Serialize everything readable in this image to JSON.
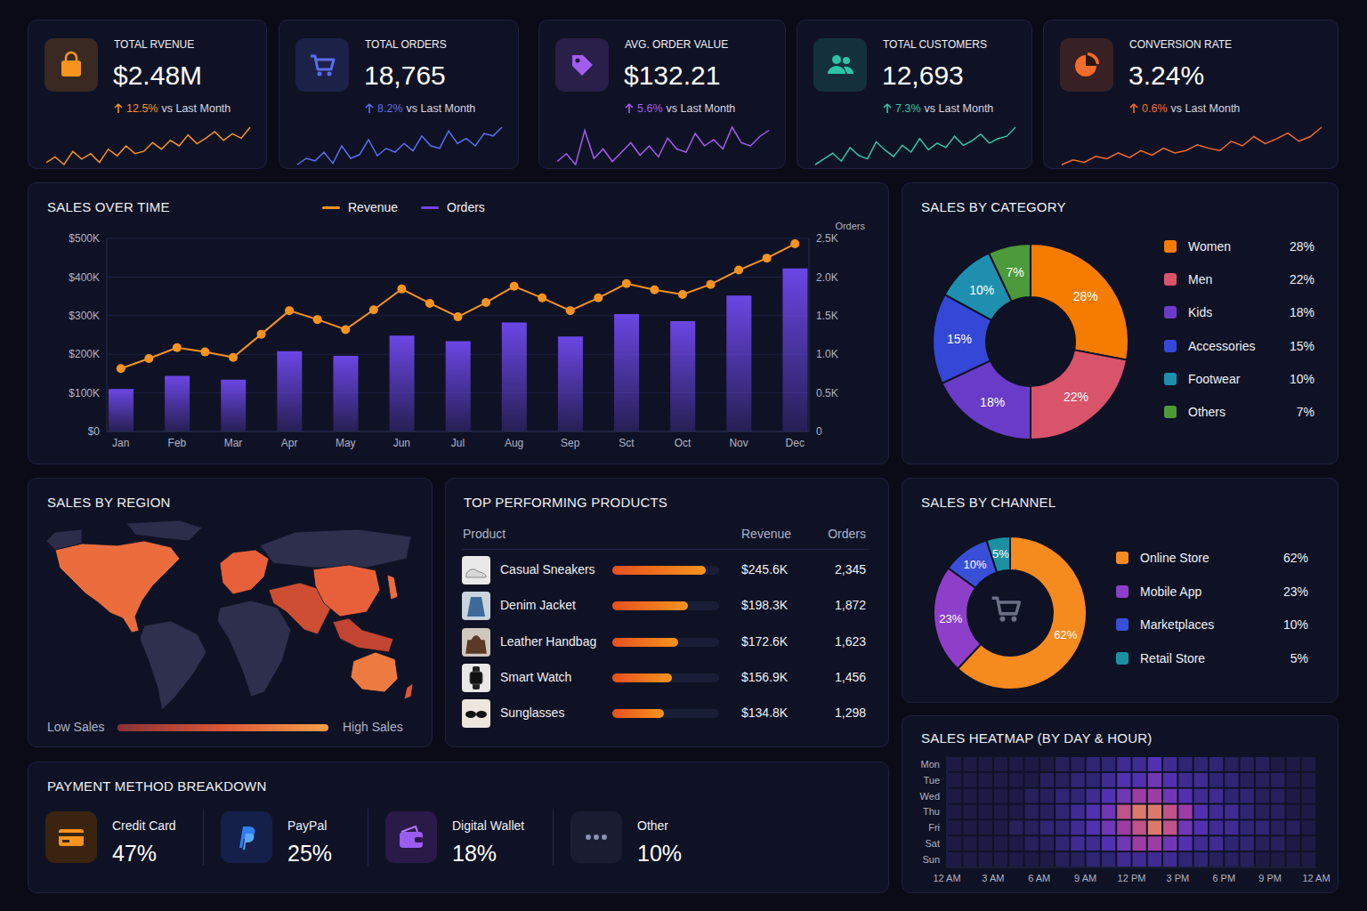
{
  "kpis": [
    {
      "title": "TOTAL RVENUE",
      "value": "$2.48M",
      "change": "12.5%",
      "compare": "vs Last Month",
      "color": "#f7931e",
      "sparkline": [
        30,
        35,
        28,
        40,
        33,
        38,
        30,
        42,
        36,
        45,
        38,
        40,
        48,
        42,
        50,
        45,
        55,
        47,
        52,
        58,
        50,
        56,
        52,
        62
      ]
    },
    {
      "title": "TOTAL ORDERS",
      "value": "18,765",
      "change": "8.2%",
      "compare": "vs Last Month",
      "color": "#5b6cf0",
      "sparkline": [
        25,
        30,
        28,
        35,
        26,
        40,
        30,
        33,
        45,
        32,
        38,
        35,
        42,
        36,
        48,
        40,
        38,
        52,
        42,
        46,
        40,
        50,
        48,
        55
      ]
    },
    {
      "title": "AVG. ORDER VALUE",
      "value": "$132.21",
      "change": "5.6%",
      "compare": "vs Last Month",
      "color": "#a35cf0",
      "sparkline": [
        30,
        35,
        28,
        50,
        32,
        38,
        30,
        36,
        42,
        34,
        40,
        33,
        45,
        38,
        36,
        48,
        40,
        44,
        38,
        52,
        42,
        40,
        46,
        50
      ]
    },
    {
      "title": "TOTAL CUSTOMERS",
      "value": "12,693",
      "change": "7.3%",
      "compare": "vs Last Month",
      "color": "#2ec4a6",
      "sparkline": [
        25,
        30,
        35,
        28,
        40,
        33,
        30,
        45,
        38,
        32,
        42,
        36,
        48,
        38,
        44,
        40,
        50,
        42,
        46,
        52,
        44,
        48,
        50,
        58
      ]
    },
    {
      "title": "CONVERSION RATE",
      "value": "3.24%",
      "change": "0.6%",
      "compare": "vs Last Month",
      "color": "#f36b2a",
      "sparkline": [
        28,
        32,
        30,
        35,
        33,
        38,
        34,
        40,
        36,
        42,
        38,
        40,
        45,
        42,
        40,
        48,
        44,
        52,
        46,
        50,
        55,
        48,
        52,
        60
      ]
    }
  ],
  "chart_data": [
    {
      "type": "combo",
      "title": "SALES OVER TIME",
      "categories": [
        "Jan",
        null,
        "Feb",
        null,
        "Mar",
        null,
        "Apr",
        null,
        "May",
        null,
        "Jun",
        null,
        "Jul",
        null,
        "Aug",
        null,
        "Sep",
        null,
        "Sct",
        null,
        "Oct",
        null,
        "Nov",
        null,
        "Dec"
      ],
      "series": [
        {
          "name": "Revenue",
          "type": "line",
          "color": "#f7931e",
          "marker": "circle",
          "values": [
            163000,
            189000,
            217000,
            206000,
            192000,
            252000,
            313000,
            290000,
            264000,
            315000,
            369000,
            332000,
            297000,
            334000,
            376000,
            346000,
            313000,
            346000,
            383000,
            367000,
            355000,
            381000,
            418000,
            449000,
            486000
          ]
        },
        {
          "name": "Orders",
          "type": "bar",
          "axis": "y2",
          "color": "#6b46e5",
          "values": [
            550,
            null,
            720,
            null,
            670,
            null,
            1040,
            null,
            980,
            null,
            1240,
            null,
            1170,
            null,
            1410,
            null,
            1230,
            null,
            1520,
            null,
            1430,
            null,
            1760,
            null,
            2110
          ]
        }
      ],
      "ylim": [
        0,
        500000
      ],
      "yticks": [
        {
          "value": 0,
          "label": "$0"
        },
        {
          "value": 100000,
          "label": "$100K"
        },
        {
          "value": 200000,
          "label": "$200K"
        },
        {
          "value": 300000,
          "label": "$300K"
        },
        {
          "value": 400000,
          "label": "$400K"
        },
        {
          "value": 500000,
          "label": "$500K"
        }
      ],
      "y2lim": [
        0,
        2500
      ],
      "y2ticks": [
        0,
        {
          "value": 500,
          "label": "0.5K"
        },
        {
          "value": 1000,
          "label": "1.0K"
        },
        {
          "value": 1500,
          "label": "1.5K"
        },
        {
          "value": 2000,
          "label": "2.0K"
        },
        {
          "value": 2500,
          "label": "2.5K"
        }
      ],
      "y2_label": "Orders",
      "grid": true,
      "legend": "top"
    },
    {
      "type": "donut",
      "title": "SALES BY CATEGORY",
      "categories": [
        "Women",
        "Men",
        "Kids",
        "Accessories",
        "Footwear",
        "Others"
      ],
      "values": [
        28,
        22,
        18,
        15,
        10,
        7
      ],
      "value_labels": [
        "28%",
        "22%",
        "18%",
        "15%",
        "10%",
        "7%"
      ],
      "colors": [
        "#f57c00",
        "#d9536b",
        "#6a3bc8",
        "#3547d6",
        "#1f8fb0",
        "#4c9a3a"
      ],
      "data_labels": true,
      "legend": "right"
    },
    {
      "type": "map",
      "title": "SALES BY REGION",
      "values": [
        80,
        5,
        5,
        15,
        75,
        10,
        12,
        65,
        75,
        80,
        60,
        85,
        70
      ],
      "color_range": [
        0,
        100
      ],
      "low_label": "Low Sales",
      "high_label": "High Sales"
    },
    {
      "type": "donut",
      "title": "SALES BY CHANNEL",
      "categories": [
        "Online Store",
        "Mobile App",
        "Marketplaces",
        "Retail Store"
      ],
      "values": [
        62,
        23,
        10,
        5
      ],
      "value_labels": [
        "62%",
        "23%",
        "10%",
        "5%"
      ],
      "colors": [
        "#f58a1f",
        "#8e3fc9",
        "#3a4fd8",
        "#1c8fa0"
      ],
      "data_labels": true,
      "legend": "right"
    },
    {
      "type": "heatmap",
      "title": "SALES HEATMAP (BY DAY & HOUR)",
      "categories": [
        "Mon",
        "Tue",
        "Wed",
        "Thu",
        "Fri",
        "Sat",
        "Sun"
      ],
      "xlim": [
        0,
        24
      ],
      "xticks": [
        {
          "value": 0,
          "label": "12 AM"
        },
        {
          "value": 3,
          "label": "3 AM"
        },
        {
          "value": 6,
          "label": "6 AM"
        },
        {
          "value": 9,
          "label": "9 AM"
        },
        {
          "value": 12,
          "label": "12 PM"
        },
        {
          "value": 15,
          "label": "3 PM"
        },
        {
          "value": 18,
          "label": "6 PM"
        },
        {
          "value": 21,
          "label": "9 PM"
        },
        {
          "value": 24,
          "label": "12 AM"
        }
      ],
      "cells": [
        [
          1,
          1,
          1,
          1,
          1,
          1,
          1,
          2,
          2,
          3,
          3,
          4,
          4,
          5,
          4,
          3,
          3,
          3,
          2,
          2,
          2,
          1,
          1,
          1
        ],
        [
          1,
          1,
          1,
          1,
          1,
          1,
          2,
          2,
          3,
          3,
          4,
          5,
          5,
          6,
          5,
          4,
          4,
          3,
          3,
          2,
          2,
          2,
          1,
          1
        ],
        [
          1,
          1,
          1,
          1,
          1,
          2,
          2,
          3,
          3,
          4,
          5,
          6,
          7,
          7,
          6,
          5,
          4,
          4,
          3,
          3,
          2,
          2,
          1,
          1
        ],
        [
          1,
          1,
          1,
          1,
          1,
          2,
          2,
          3,
          4,
          5,
          6,
          8,
          9,
          9,
          8,
          7,
          5,
          4,
          4,
          3,
          2,
          2,
          1,
          1
        ],
        [
          1,
          1,
          1,
          1,
          2,
          2,
          3,
          3,
          4,
          5,
          6,
          7,
          8,
          9,
          8,
          6,
          5,
          4,
          4,
          3,
          3,
          2,
          2,
          1
        ],
        [
          1,
          1,
          1,
          1,
          1,
          2,
          2,
          3,
          4,
          4,
          5,
          6,
          7,
          7,
          6,
          5,
          4,
          4,
          3,
          3,
          2,
          2,
          1,
          1
        ],
        [
          1,
          1,
          1,
          1,
          1,
          1,
          1,
          2,
          2,
          3,
          3,
          4,
          4,
          4,
          4,
          3,
          3,
          2,
          2,
          2,
          1,
          1,
          1,
          1
        ]
      ],
      "color_range": [
        0,
        10
      ]
    }
  ],
  "top_products": {
    "title": "TOP PERFORMING PRODUCTS",
    "columns": [
      "Product",
      "Revenue",
      "Orders"
    ],
    "bar_range": [
      0,
      280000
    ],
    "rows": [
      {
        "product": "Casual Sneakers",
        "revenue": {
          "value": 245600,
          "label": "$245.6K"
        },
        "orders": "2,345"
      },
      {
        "product": "Denim Jacket",
        "revenue": {
          "value": 198300,
          "label": "$198.3K"
        },
        "orders": "1,872"
      },
      {
        "product": "Leather Handbag",
        "revenue": {
          "value": 172600,
          "label": "$172.6K"
        },
        "orders": "1,623"
      },
      {
        "product": "Smart Watch",
        "revenue": {
          "value": 156900,
          "label": "$156.9K"
        },
        "orders": "1,456"
      },
      {
        "product": "Sunglasses",
        "revenue": {
          "value": 134800,
          "label": "$134.8K"
        },
        "orders": "1,298"
      }
    ]
  },
  "payment": {
    "title": "PAYMENT METHOD BREAKDOWN",
    "items": [
      {
        "name": "Credit Card",
        "value": "47%"
      },
      {
        "name": "PayPal",
        "value": "25%"
      },
      {
        "name": "Digital Wallet",
        "value": "18%"
      },
      {
        "name": "Other",
        "value": "10%"
      }
    ]
  }
}
